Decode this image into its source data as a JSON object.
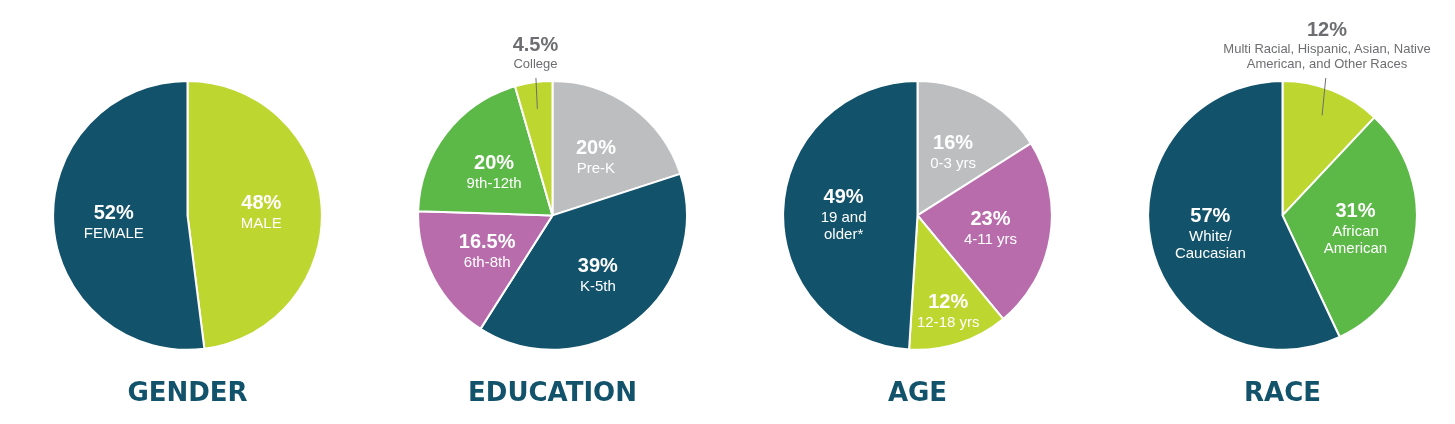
{
  "chart_data": [
    {
      "type": "pie",
      "title": "GENDER",
      "categories": [
        "MALE",
        "FEMALE"
      ],
      "values": [
        48,
        52
      ],
      "colors": [
        "#bed630",
        "#12526b"
      ],
      "value_labels": [
        "48%",
        "52%"
      ]
    },
    {
      "type": "pie",
      "title": "EDUCATION",
      "categories": [
        "Pre-K",
        "K-5th",
        "6th-8th",
        "9th-12th",
        "College"
      ],
      "values": [
        20,
        39,
        16.5,
        20,
        4.5
      ],
      "colors": [
        "#bdbec0",
        "#12526b",
        "#b86cac",
        "#5cb947",
        "#bed630"
      ],
      "value_labels": [
        "20%",
        "39%",
        "16.5%",
        "20%",
        "4.5%"
      ]
    },
    {
      "type": "pie",
      "title": "AGE",
      "categories": [
        "0-3 yrs",
        "4-11 yrs",
        "12-18 yrs",
        "19 and older*"
      ],
      "values": [
        16,
        23,
        12,
        49
      ],
      "colors": [
        "#bdbec0",
        "#b86cac",
        "#bed630",
        "#12526b"
      ],
      "value_labels": [
        "16%",
        "23%",
        "12%",
        "49%"
      ]
    },
    {
      "type": "pie",
      "title": "RACE",
      "categories": [
        "Multi Racial, Hispanic, Asian, Native American, and Other Races",
        "African American",
        "White/Caucasian"
      ],
      "values": [
        12,
        31,
        57
      ],
      "colors": [
        "#bed630",
        "#5cb947",
        "#12526b"
      ],
      "value_labels": [
        "12%",
        "31%",
        "57%"
      ]
    }
  ]
}
